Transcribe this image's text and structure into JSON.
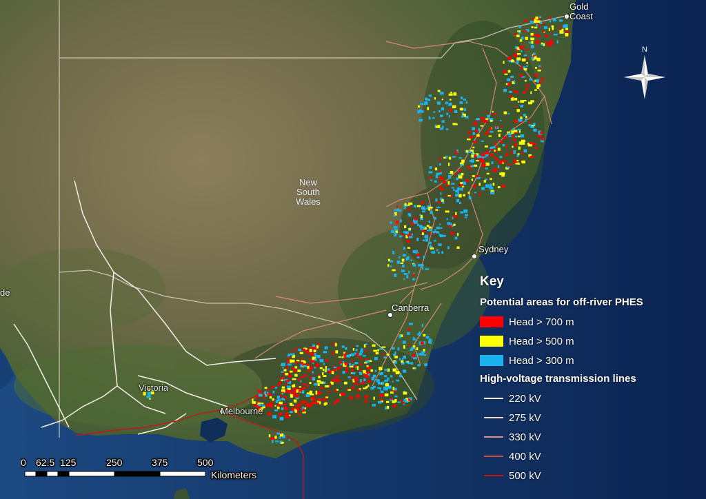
{
  "map": {
    "colors": {
      "ocean": "#123a6e",
      "ocean_dark": "#0a2248",
      "land_dry": "#8a7f5e",
      "land_green": "#4a6034",
      "land_dark": "#2f4326",
      "head_700": "#ff0000",
      "head_500": "#ffff00",
      "head_300": "#19b4f0"
    },
    "places": [
      {
        "key": "gold_coast",
        "name": "Gold\nCoast"
      },
      {
        "key": "nsw",
        "name": "New\nSouth\nWales"
      },
      {
        "key": "sydney",
        "name": "Sydney"
      },
      {
        "key": "canberra",
        "name": "Canberra"
      },
      {
        "key": "victoria",
        "name": "Victoria"
      },
      {
        "key": "melbourne",
        "name": "Melbourne"
      },
      {
        "key": "adelaide_edge",
        "name": "de"
      }
    ],
    "north_arrow": {
      "label": "N",
      "icon": "north-arrow-icon"
    }
  },
  "legend": {
    "title": "Key",
    "pumped_hydro_heading": "Potential areas for off-river PHES",
    "head_items": [
      {
        "label": "Head > 700 m",
        "color": "#ff0000"
      },
      {
        "label": "Head > 500 m",
        "color": "#ffff00"
      },
      {
        "label": "Head > 300 m",
        "color": "#19b4f0"
      }
    ],
    "lines_heading": "High-voltage transmission lines",
    "line_items": [
      {
        "label": "220 kV",
        "color": "#f2efe6"
      },
      {
        "label": "275 kV",
        "color": "#f0d8c8"
      },
      {
        "label": "330 kV",
        "color": "#e08f7a"
      },
      {
        "label": "400 kV",
        "color": "#d05040"
      },
      {
        "label": "500 kV",
        "color": "#c01818"
      }
    ]
  },
  "scale_bar": {
    "ticks": [
      "0",
      "62.5",
      "125",
      "250",
      "375",
      "500"
    ],
    "units": "Kilometers"
  }
}
